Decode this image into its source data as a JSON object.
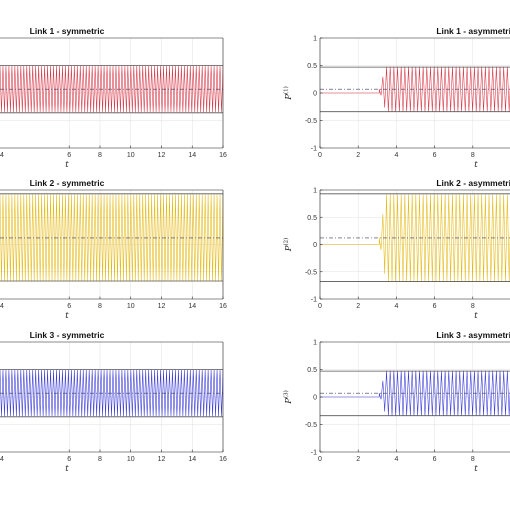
{
  "chart_data": [
    {
      "type": "line",
      "title": "Link 1 - symmetric",
      "xlabel": "t",
      "ylabel": "",
      "xlim": [
        1.5,
        16
      ],
      "ylim": [
        -1,
        1
      ],
      "xticks": [
        6,
        8,
        10,
        12,
        14,
        16
      ],
      "yticks": [],
      "grid": true,
      "signal": {
        "color": "#d62839",
        "onset": 1.5,
        "center": 0.07,
        "amplitude": 0.42,
        "pre_level": 0.07
      },
      "envelope": {
        "upper": 0.5,
        "lower": -0.36
      },
      "mean_line": 0.07
    },
    {
      "type": "line",
      "title": "Link 1 - asymmetric",
      "xlabel": "t",
      "ylabel": "P(1)",
      "xlim": [
        0,
        10
      ],
      "ylim": [
        -1,
        1
      ],
      "xticks": [
        0,
        2,
        4,
        6,
        8
      ],
      "yticks": [
        -1,
        -0.5,
        0,
        0.5,
        1
      ],
      "grid": true,
      "signal": {
        "color": "#d62839",
        "onset": 3.1,
        "center": 0.07,
        "amplitude": 0.41,
        "pre_level": 0.0
      },
      "envelope": {
        "upper": 0.47,
        "lower": -0.34
      },
      "mean_line": 0.07
    },
    {
      "type": "line",
      "title": "Link 2 - symmetric",
      "xlabel": "t",
      "ylabel": "",
      "xlim": [
        1.5,
        16
      ],
      "ylim": [
        -1,
        1
      ],
      "xticks": [
        6,
        8,
        10,
        12,
        14,
        16
      ],
      "yticks": [],
      "grid": true,
      "signal": {
        "color": "#e4b400",
        "onset": 1.5,
        "center": 0.12,
        "amplitude": 0.8,
        "pre_level": 0.12
      },
      "envelope": {
        "upper": 0.93,
        "lower": -0.67
      },
      "mean_line": 0.12
    },
    {
      "type": "line",
      "title": "Link 2 - asymmetric",
      "xlabel": "t",
      "ylabel": "P(2)",
      "xlim": [
        0,
        10
      ],
      "ylim": [
        -1,
        1
      ],
      "xticks": [
        0,
        2,
        4,
        6,
        8
      ],
      "yticks": [
        -1,
        -0.5,
        0,
        0.5,
        1
      ],
      "grid": true,
      "signal": {
        "color": "#e4b400",
        "onset": 3.1,
        "center": 0.12,
        "amplitude": 0.8,
        "pre_level": 0.0
      },
      "envelope": {
        "upper": 0.93,
        "lower": -0.68
      },
      "mean_line": 0.12
    },
    {
      "type": "line",
      "title": "Link 3 - symmetric",
      "xlabel": "t",
      "ylabel": "",
      "xlim": [
        1.5,
        16
      ],
      "ylim": [
        -1,
        1
      ],
      "xticks": [
        6,
        8,
        10,
        12,
        14,
        16
      ],
      "yticks": [],
      "grid": true,
      "signal": {
        "color": "#2b2bd8",
        "onset": 1.5,
        "center": 0.07,
        "amplitude": 0.42,
        "pre_level": 0.07
      },
      "envelope": {
        "upper": 0.5,
        "lower": -0.36
      },
      "mean_line": 0.07
    },
    {
      "type": "line",
      "title": "Link 3 - asymmetric",
      "xlabel": "t",
      "ylabel": "P(3)",
      "xlim": [
        0,
        10
      ],
      "ylim": [
        -1,
        1
      ],
      "xticks": [
        0,
        2,
        4,
        6,
        8
      ],
      "yticks": [
        -1,
        -0.5,
        0,
        0.5,
        1
      ],
      "grid": true,
      "signal": {
        "color": "#2b2bd8",
        "onset": 3.1,
        "center": 0.07,
        "amplitude": 0.41,
        "pre_level": 0.0
      },
      "envelope": {
        "upper": 0.47,
        "lower": -0.34
      },
      "mean_line": 0.07
    }
  ]
}
